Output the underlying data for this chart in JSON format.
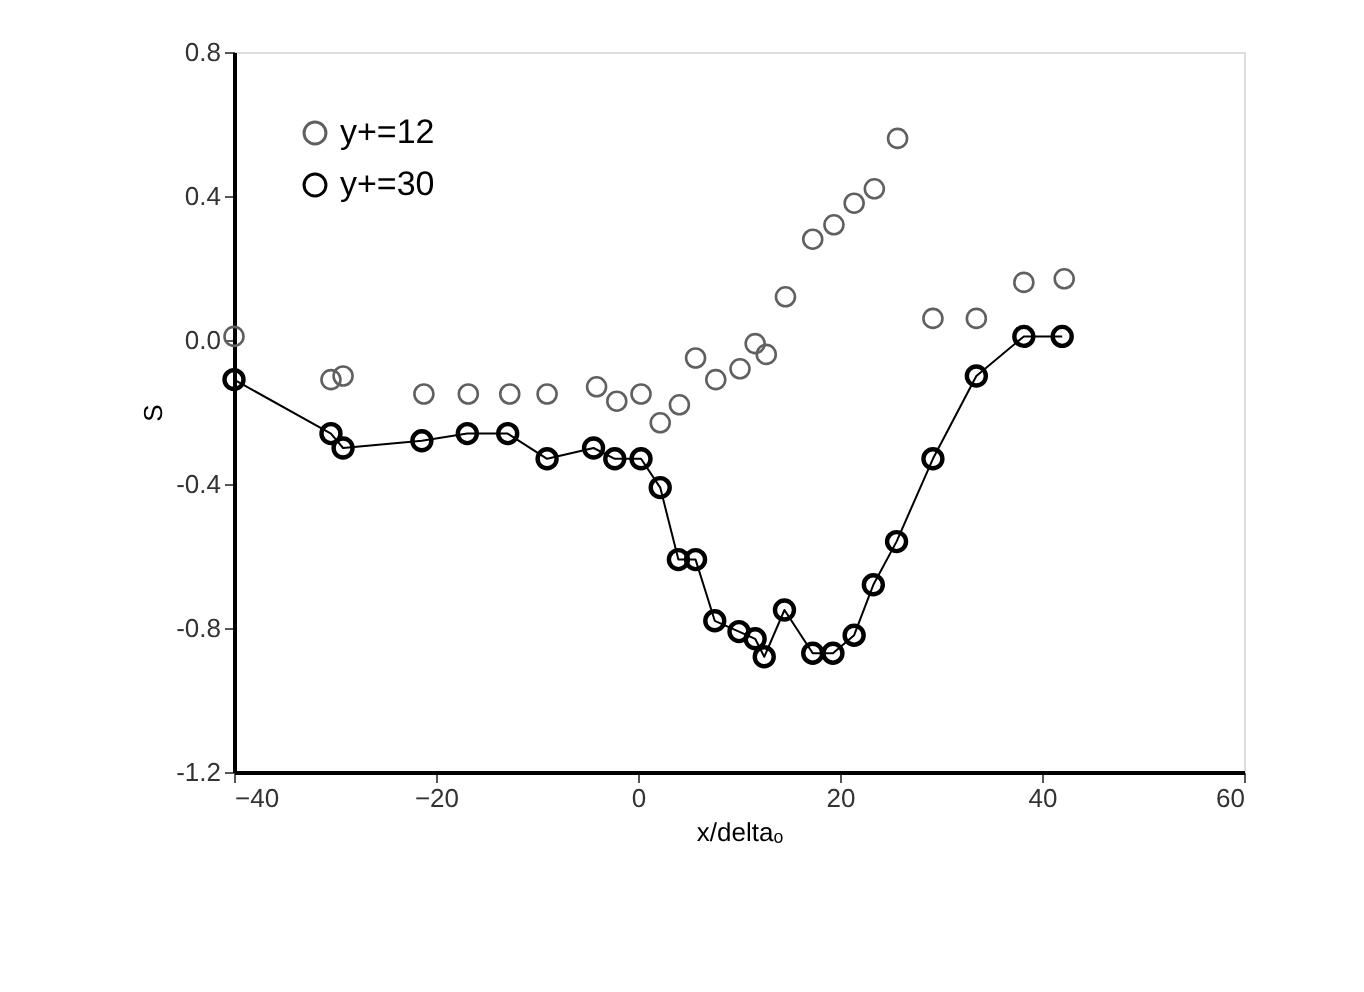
{
  "chart_data": {
    "type": "scatter",
    "xlabel": "x/deltaₒ",
    "ylabel": "S",
    "xlim": [
      -40,
      60
    ],
    "xticks": [
      -40,
      -20,
      0,
      20,
      40,
      60
    ],
    "ylim": [
      -1.2,
      0.8
    ],
    "yticks": [
      {
        "value": 0.8,
        "label": "0.8"
      },
      {
        "value": 0.4,
        "label": "0.4"
      },
      {
        "value": 0,
        "label": "0.0"
      },
      {
        "value": -0.4,
        "label": "-0.4"
      },
      {
        "value": -0.8,
        "label": "-0.8"
      },
      {
        "value": -1.2,
        "label": "-1.2"
      }
    ],
    "grid": false,
    "legend": "top left",
    "marker": "circle",
    "line_style": "solid",
    "series": [
      {
        "name": "y+=12",
        "color": "#606060",
        "x": [
          -40.0,
          -30.4,
          -29.2,
          -21.2,
          -16.8,
          -12.7,
          -9.0,
          -4.1,
          -2.1,
          0.3,
          2.2,
          4.1,
          5.7,
          7.7,
          10.1,
          11.6,
          12.7,
          14.6,
          17.3,
          19.4,
          21.4,
          23.4,
          25.7,
          29.2,
          33.5,
          38.2,
          42.2
        ],
        "values": [
          0.01,
          -0.11,
          -0.1,
          -0.15,
          -0.15,
          -0.15,
          -0.15,
          -0.13,
          -0.17,
          -0.15,
          -0.23,
          -0.18,
          -0.05,
          -0.11,
          -0.08,
          -0.01,
          -0.04,
          0.12,
          0.28,
          0.32,
          0.38,
          0.42,
          0.56,
          0.06,
          0.06,
          0.16,
          0.17
        ]
      },
      {
        "name": "y+=30",
        "type": "line",
        "color": "#000000",
        "x": [
          -40.0,
          -30.4,
          -29.2,
          -21.4,
          -16.9,
          -12.9,
          -9.0,
          -4.4,
          -2.3,
          0.3,
          2.2,
          4.0,
          5.7,
          7.6,
          10.0,
          11.6,
          12.5,
          14.5,
          17.3,
          19.3,
          21.4,
          23.3,
          25.6,
          29.2,
          33.5,
          38.2,
          42.0
        ],
        "values": [
          -0.11,
          -0.26,
          -0.3,
          -0.28,
          -0.26,
          -0.26,
          -0.33,
          -0.3,
          -0.33,
          -0.33,
          -0.41,
          -0.61,
          -0.61,
          -0.78,
          -0.81,
          -0.83,
          -0.88,
          -0.75,
          -0.87,
          -0.87,
          -0.82,
          -0.68,
          -0.56,
          -0.33,
          -0.1,
          0.01,
          0.01
        ]
      }
    ]
  }
}
